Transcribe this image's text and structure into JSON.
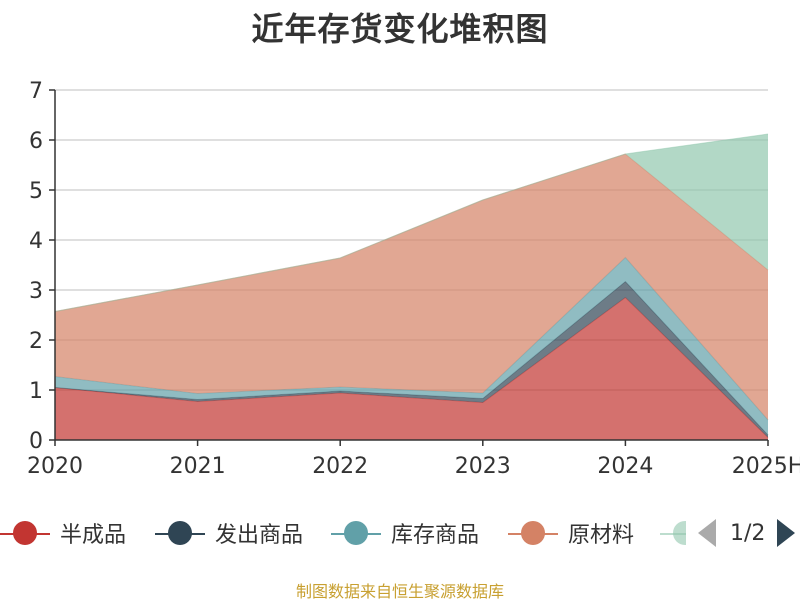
{
  "title": "近年存货变化堆积图",
  "footer": "制图数据来自恒生聚源数据库",
  "legend": {
    "page_indicator": "1/2"
  },
  "chart_data": {
    "type": "area",
    "stacked": true,
    "categories": [
      "2020",
      "2021",
      "2022",
      "2023",
      "2024",
      "2025H"
    ],
    "ylim": [
      0,
      7
    ],
    "yticks": [
      0,
      1,
      2,
      3,
      4,
      5,
      6,
      7
    ],
    "grid": true,
    "legend_position": "bottom",
    "series": [
      {
        "name": "半成品",
        "color": "#c23531",
        "values": [
          1.05,
          0.77,
          0.94,
          0.75,
          2.85,
          0.05
        ]
      },
      {
        "name": "发出商品",
        "color": "#2f4554",
        "values": [
          0.0,
          0.04,
          0.04,
          0.08,
          0.32,
          0.05
        ]
      },
      {
        "name": "库存商品",
        "color": "#61a0a8",
        "values": [
          0.22,
          0.12,
          0.08,
          0.11,
          0.48,
          0.3
        ]
      },
      {
        "name": "原材料",
        "color": "#d48265",
        "values": [
          1.3,
          2.17,
          2.58,
          3.86,
          2.07,
          3.0
        ]
      },
      {
        "name": "",
        "color": "#91c7ae",
        "values": [
          0.0,
          0.0,
          0.0,
          0.0,
          0.0,
          2.72
        ]
      }
    ]
  }
}
